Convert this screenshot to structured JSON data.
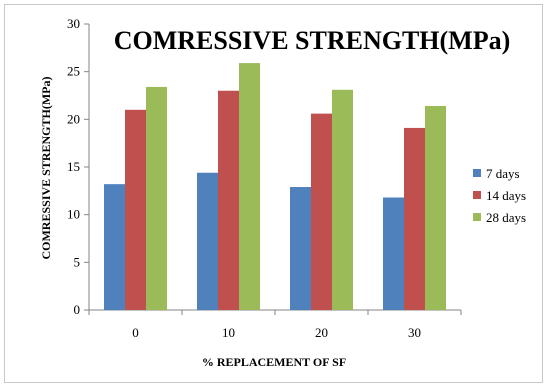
{
  "chart_data": {
    "type": "bar",
    "title": "COMRESSIVE STRENGTH(MPa)",
    "xlabel": "% REPLACEMENT OF SF",
    "ylabel": "COMRESSIVE STRENGTH(MPa)",
    "categories": [
      "0",
      "10",
      "20",
      "30"
    ],
    "ylim": [
      0,
      30
    ],
    "yticks": [
      "0",
      "5",
      "10",
      "15",
      "20",
      "25",
      "30"
    ],
    "grid": false,
    "legend_position": "right",
    "series": [
      {
        "name": "7 days",
        "color": "#4f81bd",
        "values": [
          13.2,
          14.4,
          12.9,
          11.8
        ]
      },
      {
        "name": "14 days",
        "color": "#c0504d",
        "values": [
          21.0,
          23.0,
          20.6,
          19.1
        ]
      },
      {
        "name": "28 days",
        "color": "#9bbb59",
        "values": [
          23.4,
          25.9,
          23.1,
          21.4
        ]
      }
    ]
  }
}
